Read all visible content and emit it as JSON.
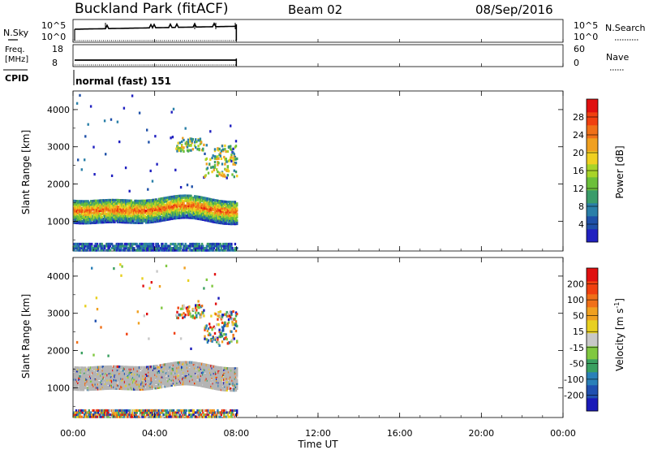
{
  "header": {
    "station": "Buckland Park (fitACF)",
    "beam": "Beam 02",
    "date": "08/Sep/2016"
  },
  "top_panels": {
    "nsky_label": "N.Sky",
    "nsky_ticks": [
      "10^5",
      "10^0"
    ],
    "nsky_right_ticks": [
      "10^5",
      "10^0"
    ],
    "nsearch_label": "N.Search",
    "freq_label": "Freq.",
    "freq_unit": "[MHz]",
    "freq_ticks": [
      "18",
      "8"
    ],
    "nave_ticks": [
      "60",
      "0"
    ],
    "nave_label": "Nave",
    "cpid_label": "CPID",
    "cpid_value": "normal (fast) 151"
  },
  "colors": {
    "power": [
      "#2020c0",
      "#1e50a8",
      "#2a7fa8",
      "#3a9c6a",
      "#6cbf3a",
      "#a8d428",
      "#f0d020",
      "#f0a020",
      "#f07018",
      "#f04010",
      "#e01010"
    ],
    "velocity": [
      "#1a1ab8",
      "#2050b0",
      "#2a80b8",
      "#3aa060",
      "#80c840",
      "#c8c8c8",
      "#e8d020",
      "#f0a020",
      "#f07018",
      "#f04010",
      "#e01010"
    ],
    "ground_scatter": "#b4b4b4"
  },
  "chart_data": [
    {
      "type": "heatmap",
      "panel": "power",
      "ylabel": "Slant Range [km]",
      "xlabel": "",
      "ylim": [
        200,
        4500
      ],
      "y_ticks": [
        "4000",
        "3000",
        "2000",
        "1000"
      ],
      "y_tick_values": [
        4000,
        3000,
        2000,
        1000
      ],
      "x_ticks": [
        "00:00",
        "04:00",
        "08:00",
        "12:00",
        "16:00",
        "20:00",
        "00:00"
      ],
      "x_tick_hours": [
        0,
        4,
        8,
        12,
        16,
        20,
        24
      ],
      "colorbar_label": "Power [dB]",
      "colorbar_ticks": [
        "28",
        "24",
        "20",
        "16",
        "12",
        "8",
        "4"
      ],
      "colorbar_values": [
        28,
        24,
        20,
        16,
        12,
        8,
        4
      ],
      "clim": [
        0,
        32
      ],
      "data_end_hour": 8.0
    },
    {
      "type": "heatmap",
      "panel": "velocity",
      "ylabel": "Slant Range [km]",
      "xlabel": "Time UT",
      "ylim": [
        200,
        4500
      ],
      "y_ticks": [
        "4000",
        "3000",
        "2000",
        "1000"
      ],
      "y_tick_values": [
        4000,
        3000,
        2000,
        1000
      ],
      "x_ticks": [
        "00:00",
        "04:00",
        "08:00",
        "12:00",
        "16:00",
        "20:00",
        "00:00"
      ],
      "x_tick_hours": [
        0,
        4,
        8,
        12,
        16,
        20,
        24
      ],
      "colorbar_label": "Velocity [m s",
      "colorbar_unit_exp": "-1",
      "colorbar_ticks": [
        "200",
        "100",
        "50",
        "15",
        "-15",
        "-50",
        "-100",
        "-200"
      ],
      "data_end_hour": 8.0
    }
  ]
}
